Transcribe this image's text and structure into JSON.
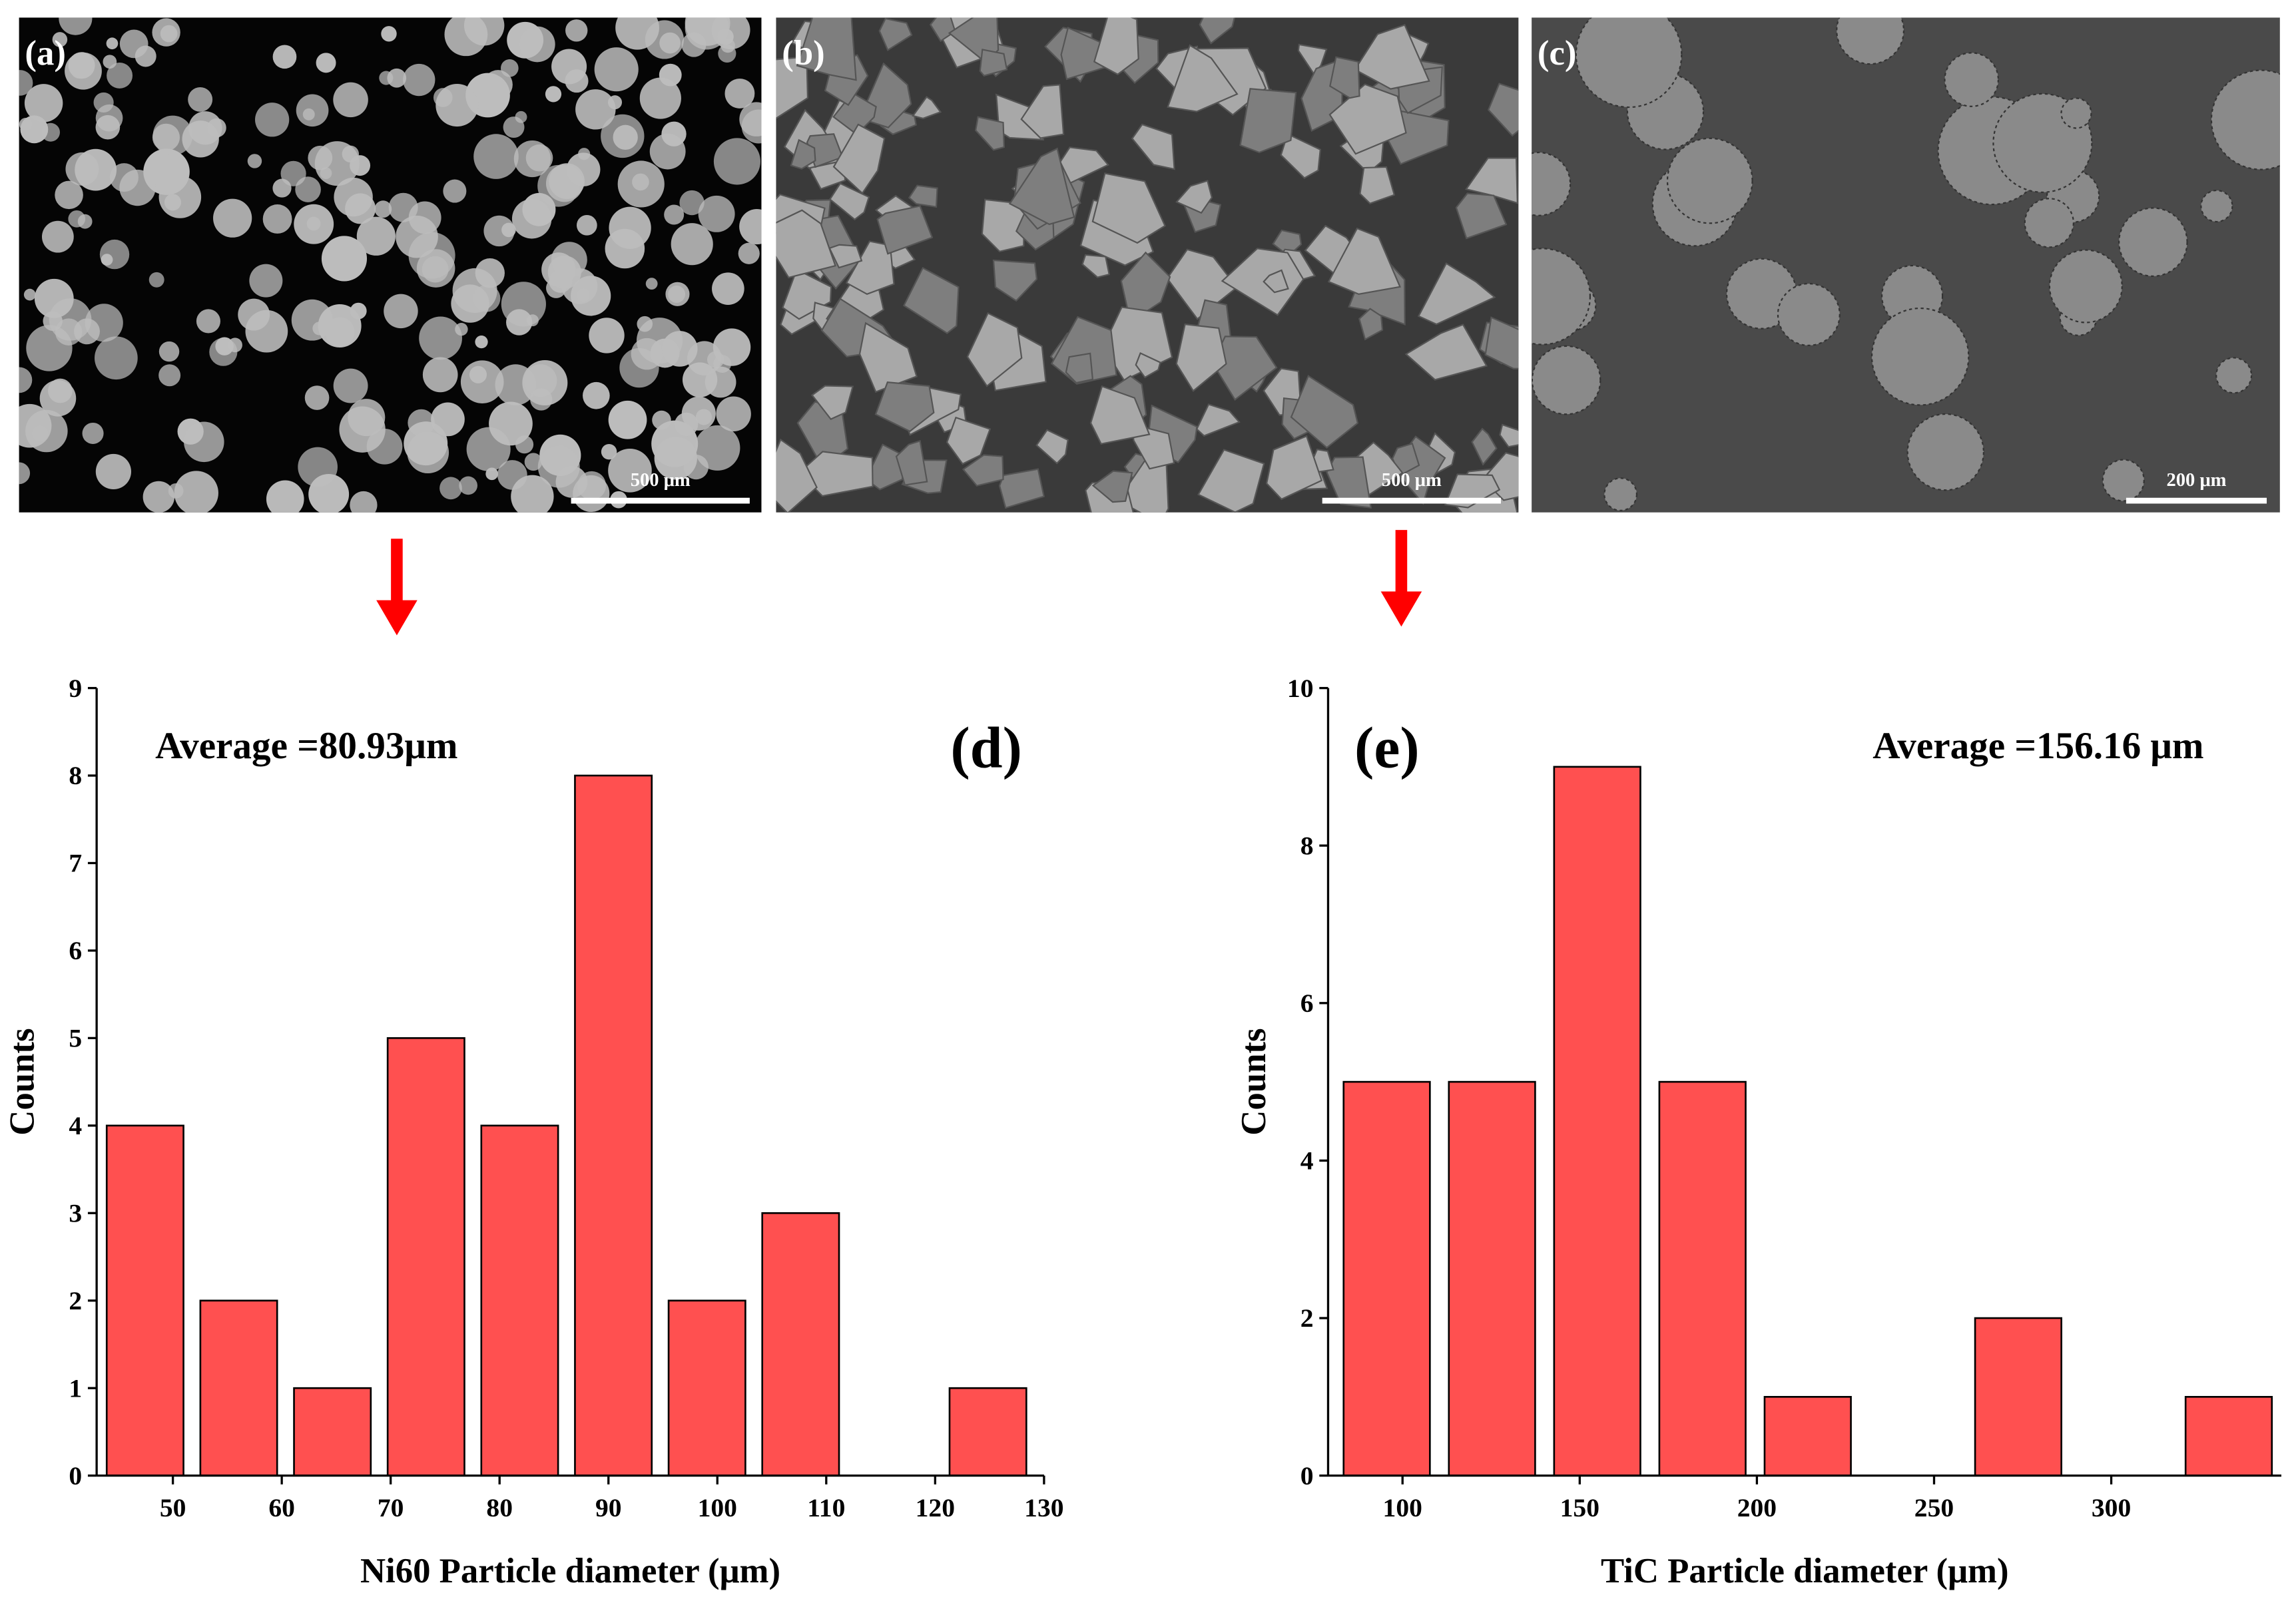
{
  "images": [
    {
      "label": "(a)",
      "scale_bar": "500 μm"
    },
    {
      "label": "(b)",
      "scale_bar": "500 μm"
    },
    {
      "label": "(c)",
      "scale_bar": "200 μm"
    }
  ],
  "chart_data": [
    {
      "type": "histogram",
      "panel_label": "(d)",
      "annotation": "Average =80.93μm",
      "xlabel": "Ni60 Particle diameter (μm)",
      "ylabel": "Counts",
      "bins": [
        43.15,
        51.75,
        60.35,
        68.95,
        77.55,
        86.15,
        94.75,
        103.35,
        111.95,
        120.55,
        129.15
      ],
      "counts": [
        4,
        2,
        1,
        5,
        4,
        8,
        2,
        3,
        0,
        1
      ],
      "color": "#ff5050",
      "xlim": [
        43,
        130
      ],
      "ylim": [
        0,
        9
      ],
      "xticks": [
        50,
        60,
        70,
        80,
        90,
        100,
        110,
        120,
        130
      ],
      "yticks": [
        0,
        1,
        2,
        3,
        4,
        5,
        6,
        7,
        8,
        9
      ]
    },
    {
      "type": "histogram",
      "panel_label": "(e)",
      "annotation": "Average =156.16 μm",
      "xlabel": "TiC Particle diameter (μm)",
      "ylabel": "Counts",
      "bins": [
        80.7,
        110.4,
        140.1,
        169.8,
        199.5,
        229.2,
        258.9,
        288.6,
        318.3,
        348.0
      ],
      "counts": [
        5,
        5,
        9,
        5,
        1,
        0,
        2,
        0,
        1
      ],
      "color": "#ff5050",
      "xlim": [
        79,
        348
      ],
      "ylim": [
        0,
        10
      ],
      "xticks": [
        100,
        150,
        200,
        250,
        300
      ],
      "yticks": [
        0,
        2,
        4,
        6,
        8,
        10
      ]
    }
  ]
}
